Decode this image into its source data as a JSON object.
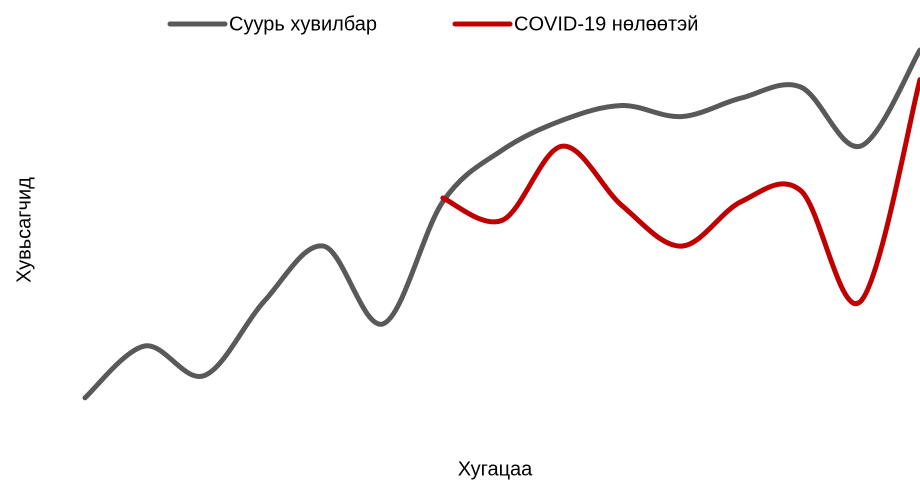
{
  "chart_data": {
    "type": "line",
    "xlabel": "Хугацаа",
    "ylabel": "Хувьсагчид",
    "categories": [
      null,
      null,
      null,
      null,
      null,
      null,
      null,
      null,
      null,
      null,
      null,
      null,
      null,
      null,
      null
    ],
    "series": [
      {
        "name": "Суурь хувилбар",
        "color": "#595959",
        "values": [
          6,
          20,
          12,
          32,
          47,
          26,
          59,
          73,
          81,
          85,
          82,
          87,
          90,
          74,
          100
        ]
      },
      {
        "name": "COVID-19 нөлөөтэй",
        "color": "#c00000",
        "values": [
          null,
          null,
          null,
          null,
          null,
          null,
          60,
          54,
          74,
          58,
          47,
          59,
          62,
          32,
          92
        ]
      }
    ],
    "ylim": [
      0,
      100
    ],
    "legend": "top",
    "smooth": true
  }
}
